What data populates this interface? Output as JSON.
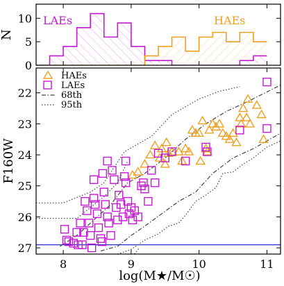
{
  "chart_data": [
    {
      "panel": "top",
      "type": "histogram",
      "ylabel": "N",
      "xlim": [
        7.6,
        11.2
      ],
      "ylim": [
        0,
        13
      ],
      "yticks": [
        0,
        5,
        10
      ],
      "series": [
        {
          "name": "LAEs",
          "color": "#c41ad6",
          "bin_edges": [
            7.6,
            7.8,
            8.0,
            8.2,
            8.4,
            8.6,
            8.8,
            9.0,
            9.2,
            9.4,
            9.6,
            9.8,
            10.0,
            10.2,
            10.4,
            10.6,
            10.8,
            11.0
          ],
          "counts": [
            0,
            2,
            4,
            8,
            11,
            6,
            9,
            4,
            1,
            1,
            0,
            0,
            0,
            0,
            0,
            1,
            2
          ]
        },
        {
          "name": "HAEs",
          "color": "#f0a020",
          "bin_edges": [
            7.6,
            7.8,
            8.0,
            8.2,
            8.4,
            8.6,
            8.8,
            9.0,
            9.2,
            9.4,
            9.6,
            9.8,
            10.0,
            10.2,
            10.4,
            10.6,
            10.8,
            11.0
          ],
          "counts": [
            0,
            0,
            0,
            0,
            0,
            0,
            0,
            0,
            2,
            4,
            6,
            3,
            6,
            7,
            5,
            7,
            5
          ]
        }
      ],
      "legend_labels": [
        "LAEs",
        "HAEs"
      ]
    },
    {
      "panel": "bottom",
      "type": "scatter",
      "xlabel": "log(M★/M☉)",
      "ylabel": "F160W",
      "xlim": [
        7.6,
        11.2
      ],
      "ylim": [
        27.2,
        21.2
      ],
      "xticks": [
        8,
        9,
        10,
        11
      ],
      "yticks": [
        22,
        23,
        24,
        25,
        26,
        27
      ],
      "hline": {
        "y": 26.9,
        "color": "#2a2acc"
      },
      "legend": [
        "HAEs",
        "LAEs",
        "68th",
        "95th"
      ],
      "series": [
        {
          "name": "HAEs",
          "marker": "triangle",
          "color": "#f0a020",
          "points": [
            [
              9.02,
              24.65
            ],
            [
              9.1,
              24.55
            ],
            [
              9.2,
              24.3
            ],
            [
              9.28,
              24.0
            ],
            [
              9.35,
              23.7
            ],
            [
              9.42,
              24.1
            ],
            [
              9.45,
              23.8
            ],
            [
              9.5,
              24.3
            ],
            [
              9.52,
              23.6
            ],
            [
              9.55,
              23.95
            ],
            [
              9.6,
              23.9
            ],
            [
              9.7,
              23.9
            ],
            [
              9.75,
              24.2
            ],
            [
              9.8,
              23.8
            ],
            [
              9.85,
              23.9
            ],
            [
              9.9,
              23.2
            ],
            [
              9.95,
              23.3
            ],
            [
              10.0,
              23.3
            ],
            [
              10.02,
              24.2
            ],
            [
              10.05,
              22.9
            ],
            [
              10.1,
              23.8
            ],
            [
              10.12,
              23.9
            ],
            [
              10.15,
              23.2
            ],
            [
              10.2,
              23.0
            ],
            [
              10.25,
              23.1
            ],
            [
              10.3,
              23.0
            ],
            [
              10.35,
              23.3
            ],
            [
              10.4,
              23.4
            ],
            [
              10.45,
              23.5
            ],
            [
              10.5,
              23.3
            ],
            [
              10.55,
              23.6
            ],
            [
              10.6,
              22.8
            ],
            [
              10.62,
              23.0
            ],
            [
              10.65,
              22.5
            ],
            [
              10.7,
              22.8
            ],
            [
              10.72,
              22.2
            ],
            [
              10.75,
              23.0
            ],
            [
              10.85,
              22.4
            ],
            [
              10.92,
              22.7
            ],
            [
              10.95,
              23.5
            ]
          ]
        },
        {
          "name": "LAEs",
          "marker": "square",
          "color": "#c41ad6",
          "points": [
            [
              8.02,
              26.4
            ],
            [
              8.05,
              26.75
            ],
            [
              8.08,
              26.8
            ],
            [
              8.15,
              26.85
            ],
            [
              8.2,
              26.5
            ],
            [
              8.22,
              26.9
            ],
            [
              8.25,
              26.2
            ],
            [
              8.28,
              26.9
            ],
            [
              8.3,
              26.5
            ],
            [
              8.32,
              25.5
            ],
            [
              8.35,
              25.8
            ],
            [
              8.38,
              26.2
            ],
            [
              8.4,
              26.6
            ],
            [
              8.42,
              27.0
            ],
            [
              8.45,
              24.8
            ],
            [
              8.47,
              25.6
            ],
            [
              8.5,
              25.9
            ],
            [
              8.52,
              26.35
            ],
            [
              8.55,
              26.7
            ],
            [
              8.57,
              26.8
            ],
            [
              8.6,
              25.2
            ],
            [
              8.62,
              25.6
            ],
            [
              8.65,
              26.0
            ],
            [
              8.67,
              26.2
            ],
            [
              8.7,
              26.6
            ],
            [
              8.72,
              24.5
            ],
            [
              8.75,
              24.8
            ],
            [
              8.78,
              25.7
            ],
            [
              8.8,
              26.1
            ],
            [
              8.82,
              25.3
            ],
            [
              8.85,
              25.6
            ],
            [
              8.88,
              26.0
            ],
            [
              8.9,
              24.7
            ],
            [
              8.92,
              24.9
            ],
            [
              8.95,
              25.5
            ],
            [
              8.97,
              25.9
            ],
            [
              9.0,
              25.7
            ],
            [
              9.02,
              26.1
            ],
            [
              9.05,
              25.8
            ],
            [
              9.1,
              26.0
            ],
            [
              9.15,
              25.0
            ],
            [
              9.18,
              24.9
            ],
            [
              9.2,
              25.1
            ],
            [
              9.25,
              25.5
            ],
            [
              9.3,
              24.5
            ],
            [
              9.35,
              24.9
            ],
            [
              9.4,
              23.95
            ],
            [
              9.5,
              24.1
            ],
            [
              9.6,
              23.9
            ],
            [
              9.8,
              24.2
            ],
            [
              10.1,
              23.75
            ],
            [
              10.12,
              23.9
            ],
            [
              10.6,
              23.2
            ],
            [
              11.0,
              23.15
            ],
            [
              11.0,
              21.65
            ],
            [
              8.45,
              25.4
            ],
            [
              8.58,
              24.6
            ],
            [
              8.65,
              24.2
            ],
            [
              8.92,
              24.2
            ]
          ]
        },
        {
          "name": "68th",
          "style": "dashdot",
          "curves": [
            [
              [
                7.95,
                26.95
              ],
              [
                8.2,
                26.6
              ],
              [
                8.5,
                26.0
              ],
              [
                8.7,
                25.6
              ],
              [
                8.95,
                24.9
              ],
              [
                9.2,
                24.6
              ],
              [
                9.5,
                24.1
              ],
              [
                9.8,
                23.5
              ],
              [
                10.1,
                23.0
              ],
              [
                10.4,
                22.6
              ],
              [
                10.7,
                22.3
              ],
              [
                11.2,
                21.75
              ]
            ],
            [
              [
                8.55,
                27.1
              ],
              [
                8.8,
                26.95
              ],
              [
                9.0,
                26.6
              ],
              [
                9.2,
                26.3
              ],
              [
                9.45,
                25.9
              ],
              [
                9.7,
                25.5
              ],
              [
                9.95,
                25.2
              ],
              [
                10.2,
                24.6
              ],
              [
                10.5,
                24.1
              ],
              [
                10.8,
                23.8
              ],
              [
                11.2,
                23.3
              ]
            ]
          ]
        },
        {
          "name": "95th",
          "style": "dotted",
          "curves": [
            [
              [
                7.6,
                25.55
              ],
              [
                8.0,
                25.55
              ],
              [
                8.4,
                25.2
              ],
              [
                8.6,
                24.9
              ],
              [
                8.9,
                23.9
              ],
              [
                9.3,
                23.4
              ],
              [
                9.6,
                22.7
              ],
              [
                9.8,
                22.45
              ],
              [
                10.0,
                22.2
              ],
              [
                10.3,
                21.95
              ],
              [
                10.6,
                21.8
              ]
            ],
            [
              [
                7.6,
                26.05
              ],
              [
                8.2,
                26.05
              ],
              [
                8.4,
                25.7
              ],
              [
                8.6,
                25.35
              ],
              [
                8.8,
                24.9
              ],
              [
                8.95,
                24.2
              ]
            ],
            [
              [
                8.8,
                27.2
              ],
              [
                9.0,
                27.05
              ],
              [
                9.2,
                26.75
              ],
              [
                9.4,
                26.55
              ],
              [
                9.55,
                26.3
              ],
              [
                9.7,
                26.2
              ],
              [
                9.8,
                25.95
              ],
              [
                9.95,
                25.5
              ],
              [
                10.1,
                25.3
              ],
              [
                10.25,
                25.05
              ],
              [
                10.35,
                24.6
              ],
              [
                10.5,
                24.55
              ],
              [
                10.65,
                24.3
              ],
              [
                10.8,
                24.1
              ],
              [
                11.0,
                23.75
              ],
              [
                11.2,
                23.55
              ]
            ],
            [
              [
                9.05,
                27.2
              ],
              [
                9.12,
                27.0
              ]
            ]
          ]
        }
      ]
    }
  ]
}
